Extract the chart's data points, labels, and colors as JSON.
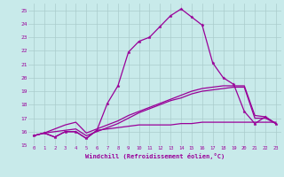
{
  "xlabel": "Windchill (Refroidissement éolien,°C)",
  "ylabel": "",
  "background_color": "#c8eaea",
  "grid_color": "#aacccc",
  "line_color": "#990099",
  "x_ticks": [
    0,
    1,
    2,
    3,
    4,
    5,
    6,
    7,
    8,
    9,
    10,
    11,
    12,
    13,
    14,
    15,
    16,
    17,
    18,
    19,
    20,
    21,
    22,
    23
  ],
  "ylim": [
    15,
    25.5
  ],
  "xlim": [
    -0.5,
    23.5
  ],
  "yticks": [
    15,
    16,
    17,
    18,
    19,
    20,
    21,
    22,
    23,
    24,
    25
  ],
  "series": [
    [
      15.7,
      15.9,
      15.6,
      16.0,
      16.0,
      15.5,
      16.1,
      18.1,
      19.4,
      21.9,
      22.7,
      23.0,
      23.8,
      24.6,
      25.1,
      24.5,
      23.9,
      21.1,
      20.0,
      19.5,
      17.5,
      16.6,
      17.1,
      16.6
    ],
    [
      15.7,
      15.9,
      15.6,
      16.0,
      16.0,
      15.5,
      16.1,
      16.2,
      16.3,
      16.4,
      16.5,
      16.5,
      16.5,
      16.5,
      16.6,
      16.6,
      16.7,
      16.7,
      16.7,
      16.7,
      16.7,
      16.7,
      16.7,
      16.7
    ],
    [
      15.7,
      15.9,
      16.2,
      16.5,
      16.7,
      15.9,
      16.2,
      16.5,
      16.8,
      17.2,
      17.5,
      17.8,
      18.1,
      18.4,
      18.7,
      19.0,
      19.2,
      19.3,
      19.4,
      19.4,
      19.4,
      17.2,
      17.1,
      16.6
    ],
    [
      15.7,
      15.9,
      16.0,
      16.1,
      16.2,
      15.7,
      16.0,
      16.3,
      16.6,
      17.0,
      17.4,
      17.7,
      18.0,
      18.3,
      18.5,
      18.8,
      19.0,
      19.1,
      19.2,
      19.3,
      19.3,
      17.0,
      17.0,
      16.6
    ]
  ]
}
